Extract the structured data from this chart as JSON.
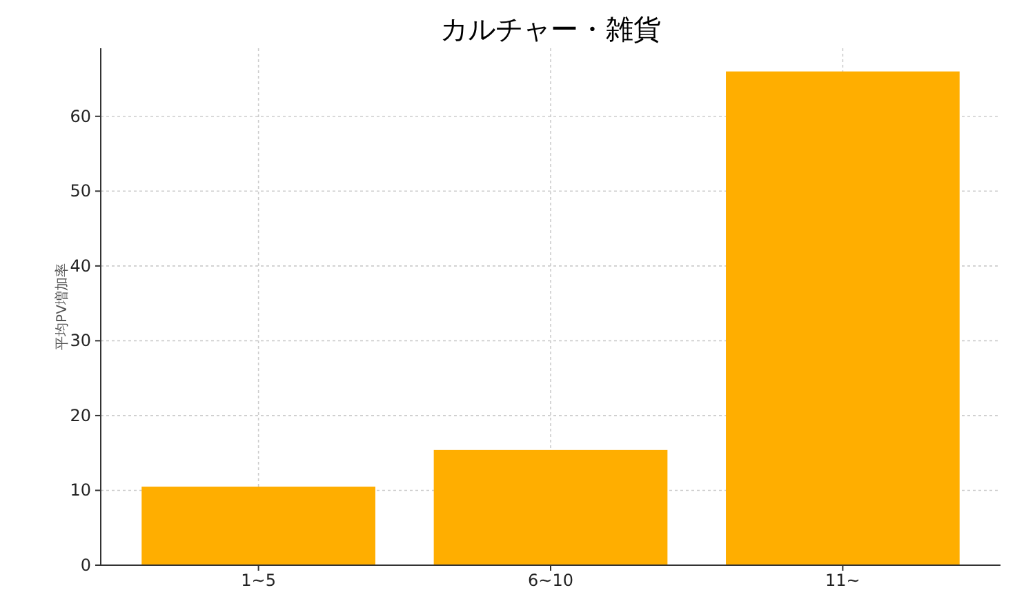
{
  "chart_data": {
    "type": "bar",
    "title": "カルチャー・雑貨",
    "ylabel": "平均PV増加率",
    "categories": [
      "1~5",
      "6~10",
      "11~"
    ],
    "series": [
      {
        "color": "#ffae00",
        "values": [
          10.5,
          15.4,
          66
        ]
      }
    ],
    "ylim": [
      0,
      69.1
    ],
    "yticks": [
      0,
      10,
      20,
      30,
      40,
      50,
      60
    ],
    "grid": true
  }
}
